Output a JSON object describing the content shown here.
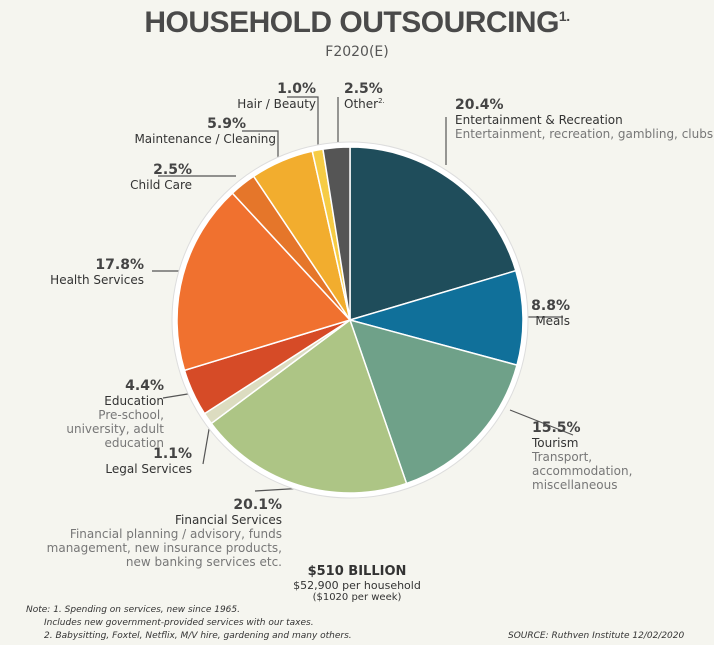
{
  "title": "HOUSEHOLD OUTSOURCING",
  "title_sup": "1.",
  "subtitle": "F2020(E)",
  "chart_data": {
    "type": "pie",
    "title": "HOUSEHOLD OUTSOURCING",
    "subtitle": "F2020(E)",
    "start": "12 o'clock, clockwise",
    "slices": [
      {
        "label": "Entertainment & Recreation",
        "pct_label": "20.4%",
        "value": 20.4,
        "desc": "Entertainment, recreation, gambling, clubs",
        "color": "#1f4d5b"
      },
      {
        "label": "Meals",
        "pct_label": "8.8%",
        "value": 8.8,
        "desc": "",
        "color": "#10709a"
      },
      {
        "label": "Tourism",
        "pct_label": "15.5%",
        "value": 15.5,
        "desc": "Transport, accommodation, miscellaneous",
        "color": "#6fa189"
      },
      {
        "label": "Financial Services",
        "pct_label": "20.1%",
        "value": 20.1,
        "desc": "Financial planning / advisory, funds management, new insurance products, new banking services etc.",
        "color": "#adc585"
      },
      {
        "label": "Legal Services",
        "pct_label": "1.1%",
        "value": 1.1,
        "desc": "",
        "color": "#dcdcc0"
      },
      {
        "label": "Education",
        "pct_label": "4.4%",
        "value": 4.4,
        "desc": "Pre-school, university, adult education",
        "color": "#d64b27"
      },
      {
        "label": "Health Services",
        "pct_label": "17.8%",
        "value": 17.8,
        "desc": "",
        "color": "#f0712f"
      },
      {
        "label": "Child Care",
        "pct_label": "2.5%",
        "value": 2.5,
        "desc": "",
        "color": "#e5762a"
      },
      {
        "label": "Maintenance / Cleaning",
        "pct_label": "5.9%",
        "value": 5.9,
        "desc": "",
        "color": "#f2ad2e"
      },
      {
        "label": "Hair / Beauty",
        "pct_label": "1.0%",
        "value": 1.0,
        "desc": "",
        "color": "#f6cc45"
      },
      {
        "label": "Other",
        "label_sup": "2.",
        "pct_label": "2.5%",
        "value": 2.5,
        "desc": "",
        "color": "#555555"
      }
    ]
  },
  "total": {
    "amount": "$510 BILLION",
    "per_household": "$52,900 per household",
    "per_week": "($1020 per week)"
  },
  "notes": [
    "Note: 1. Spending on services, new since 1965.",
    "Includes new government-provided services with our taxes.",
    "2. Babysitting, Foxtel, Netflix, M/V hire, gardening and many others."
  ],
  "source": "SOURCE: Ruthven Institute 12/02/2020"
}
